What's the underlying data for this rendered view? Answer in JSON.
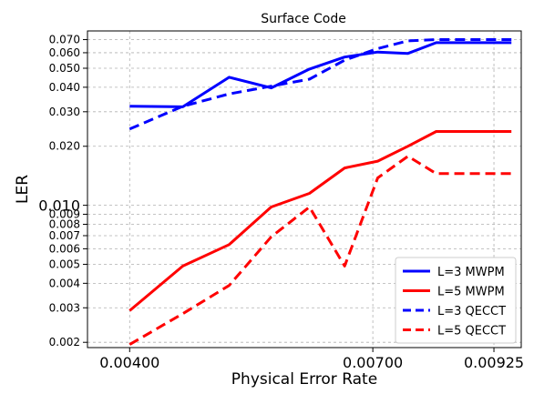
{
  "chart_data": {
    "type": "line",
    "title": "Surface Code",
    "xlabel": "Physical Error Rate",
    "ylabel": "LER",
    "yscale": "log",
    "xlim": [
      0.00363,
      0.00985
    ],
    "ylim": [
      0.00188,
      0.0775
    ],
    "grid": true,
    "legend_position": "bottom-right",
    "x_ticks": [
      {
        "value": 0.004,
        "label": "0.00400"
      },
      {
        "value": 0.007,
        "label": "0.00700"
      },
      {
        "value": 0.00925,
        "label": "0.00925"
      }
    ],
    "y_ticks": [
      {
        "value": 0.002,
        "label": "0.002"
      },
      {
        "value": 0.003,
        "label": "0.003"
      },
      {
        "value": 0.004,
        "label": "0.004"
      },
      {
        "value": 0.005,
        "label": "0.005"
      },
      {
        "value": 0.006,
        "label": "0.006"
      },
      {
        "value": 0.007,
        "label": "0.007"
      },
      {
        "value": 0.008,
        "label": "0.008"
      },
      {
        "value": 0.009,
        "label": "0.009"
      },
      {
        "value": 0.01,
        "label": "0.010",
        "major": true
      },
      {
        "value": 0.02,
        "label": "0.020"
      },
      {
        "value": 0.03,
        "label": "0.030"
      },
      {
        "value": 0.04,
        "label": "0.040"
      },
      {
        "value": 0.05,
        "label": "0.050"
      },
      {
        "value": 0.06,
        "label": "0.060"
      },
      {
        "value": 0.07,
        "label": "0.070"
      }
    ],
    "x": [
      0.004,
      0.0045,
      0.005,
      0.0055,
      0.006,
      0.0065,
      0.007,
      0.0075,
      0.008,
      0.0085,
      0.009,
      0.0095
    ],
    "series": [
      {
        "name": "L=3 MWPM",
        "color": "#0000ff",
        "dash": "solid",
        "line_width": 3,
        "x": [
          0.004,
          0.00452,
          0.00503,
          0.00554,
          0.00605,
          0.00656,
          0.00708,
          0.00759,
          0.0081,
          0.00861,
          0.00912,
          0.00963
        ],
        "values": [
          0.032,
          0.0318,
          0.045,
          0.0397,
          0.0495,
          0.057,
          0.0605,
          0.0595,
          0.0675,
          0.0675,
          0.0675,
          0.0675
        ]
      },
      {
        "name": "L=5 MWPM",
        "color": "#ff0000",
        "dash": "solid",
        "line_width": 3,
        "x": [
          0.004,
          0.00452,
          0.00503,
          0.00554,
          0.00605,
          0.00656,
          0.00708,
          0.00759,
          0.0081,
          0.00861,
          0.00912,
          0.00963
        ],
        "values": [
          0.0029,
          0.0049,
          0.0063,
          0.0098,
          0.0115,
          0.0155,
          0.0168,
          0.02,
          0.0238,
          0.0238,
          0.0238,
          0.0238
        ]
      },
      {
        "name": "L=3 QECCT",
        "color": "#0000ff",
        "dash": "dashed",
        "line_width": 3,
        "x": [
          0.004,
          0.00452,
          0.00503,
          0.00554,
          0.00605,
          0.00656,
          0.00708,
          0.00759,
          0.0081,
          0.00861,
          0.00912,
          0.00963
        ],
        "values": [
          0.0245,
          0.032,
          0.037,
          0.0405,
          0.044,
          0.055,
          0.063,
          0.069,
          0.07,
          0.07,
          0.07,
          0.07
        ]
      },
      {
        "name": "L=5 QECCT",
        "color": "#ff0000",
        "dash": "dashed",
        "line_width": 3,
        "x": [
          0.004,
          0.00452,
          0.00503,
          0.00554,
          0.00605,
          0.00656,
          0.00708,
          0.00759,
          0.0081,
          0.00861,
          0.00912,
          0.00963
        ],
        "values": [
          0.00195,
          0.0028,
          0.0039,
          0.0069,
          0.0098,
          0.0049,
          0.0138,
          0.0178,
          0.0145,
          0.0145,
          0.0145,
          0.0145
        ]
      }
    ]
  }
}
